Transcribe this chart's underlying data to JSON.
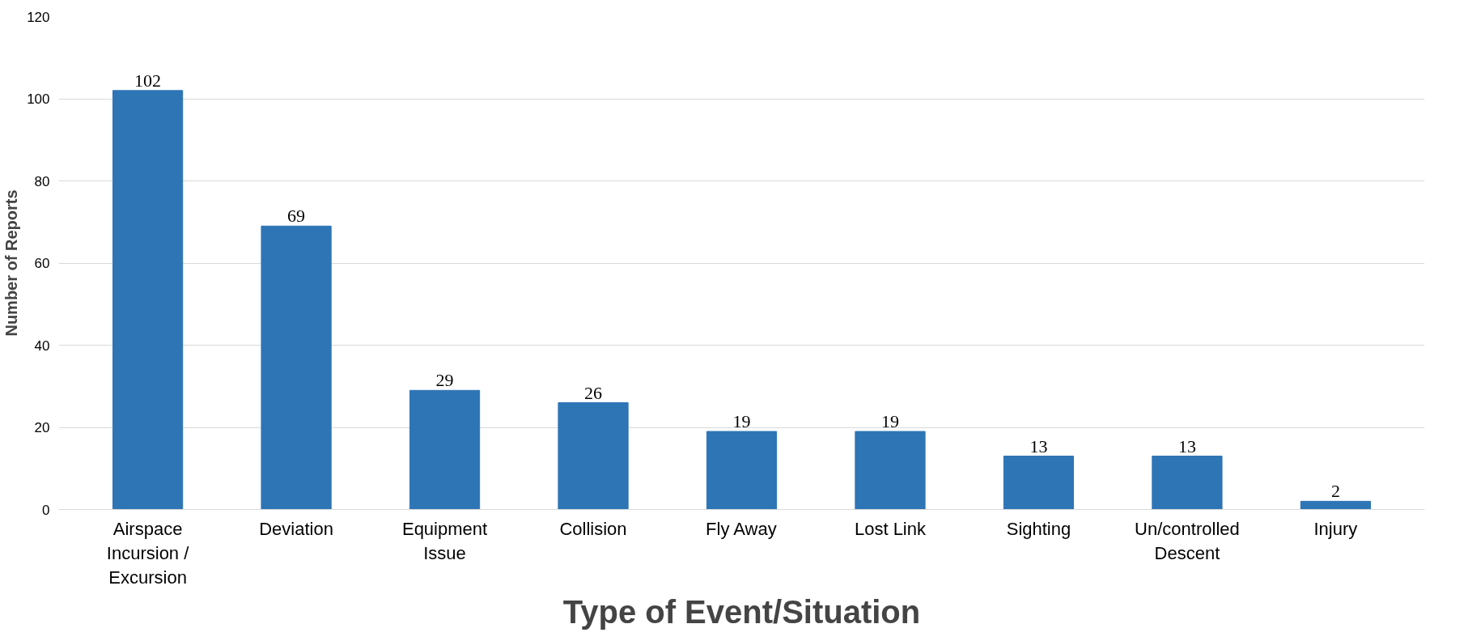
{
  "chart_data": {
    "type": "bar",
    "xlabel": "Type of Event/Situation",
    "ylabel": "Number of Reports",
    "categories": [
      "Airspace Incursion / Excursion",
      "Deviation",
      "Equipment Issue",
      "Collision",
      "Fly Away",
      "Lost Link",
      "Sighting",
      "Un/controlled Descent",
      "Injury"
    ],
    "values": [
      102,
      69,
      29,
      26,
      19,
      19,
      13,
      13,
      2
    ],
    "color": "#2e75b6",
    "ylim": [
      0,
      120
    ],
    "yticks": [
      0,
      20,
      40,
      60,
      80,
      100,
      120
    ],
    "grid": "y",
    "data_labels": true
  }
}
